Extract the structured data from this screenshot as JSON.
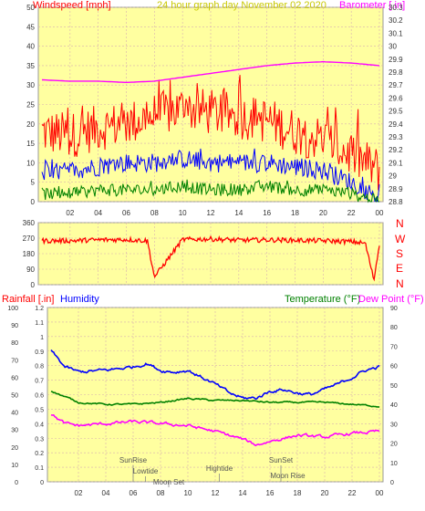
{
  "header": {
    "wind_label": "Windspeed [mph]",
    "date_label": "24 hour graph day   November 02 2020",
    "baro_label": "Barometer [.in]"
  },
  "panel3": {
    "rain_label": "Rainfall [.in]",
    "humidity_label": "Humidity",
    "temp_label": "Temperature (°F)",
    "dew_label": "Dew Point (°F)"
  },
  "compass": [
    "N",
    "W",
    "S",
    "E",
    "N"
  ],
  "colors": {
    "background": "#ffffa0",
    "frame": "#ffffff",
    "grid": "#d8b0b0",
    "windspeed": "#ff0000",
    "average_wind": "#0000ff",
    "minimum_wind": "#008000",
    "barometer": "#ff00ff",
    "direction": "#ff0000",
    "humidity": "#0000ff",
    "temperature": "#008000",
    "dew_point": "#ff00ff",
    "date_text": "#c8c800",
    "axis_text": "#333333"
  },
  "events": [
    {
      "label": "SunRise",
      "hour": 6.0
    },
    {
      "label": "Lowtide",
      "hour": 6.9
    },
    {
      "label": "Moon Set",
      "hour": 8.6
    },
    {
      "label": "Hightide",
      "hour": 12.3
    },
    {
      "label": "SunSet",
      "hour": 16.8
    },
    {
      "label": "Moon Rise",
      "hour": 17.3
    }
  ],
  "chart_data": [
    {
      "type": "line",
      "x_ticks": [
        "02",
        "04",
        "06",
        "08",
        "10",
        "12",
        "14",
        "16",
        "18",
        "20",
        "22",
        "00"
      ],
      "y_left_ticks": [
        "0",
        "5",
        "10",
        "15",
        "20",
        "25",
        "30",
        "35",
        "40",
        "45",
        "50"
      ],
      "y_left_range": [
        0,
        50
      ],
      "y_right_ticks": [
        "28.8",
        "28.9",
        "29",
        "29.1",
        "29.2",
        "29.3",
        "29.4",
        "29.5",
        "29.6",
        "29.7",
        "29.8",
        "29.9",
        "30",
        "30.1",
        "30.2",
        "30.3"
      ],
      "y_right_range": [
        28.8,
        30.3
      ],
      "x_range_hours": [
        0,
        24
      ],
      "series": [
        {
          "name": "Windspeed [mph]",
          "hours": [
            0,
            2,
            4,
            6,
            8,
            10,
            12,
            14,
            16,
            18,
            20,
            22,
            24
          ],
          "values": [
            18,
            17,
            19,
            20,
            22,
            24,
            23,
            22,
            21,
            18,
            16,
            12,
            8
          ]
        },
        {
          "name": "average wind",
          "hours": [
            0,
            2,
            4,
            6,
            8,
            10,
            12,
            14,
            16,
            18,
            20,
            22,
            24
          ],
          "values": [
            7,
            8,
            9,
            10,
            10,
            11,
            10,
            10,
            10,
            9,
            8,
            5,
            1
          ]
        },
        {
          "name": "minimum wind",
          "hours": [
            0,
            2,
            4,
            6,
            8,
            10,
            12,
            14,
            16,
            18,
            20,
            22,
            24
          ],
          "values": [
            2,
            2,
            3,
            3,
            3,
            4,
            3,
            3,
            4,
            3,
            3,
            2,
            0
          ]
        },
        {
          "name": "Barometer [.in]",
          "hours": [
            0,
            2,
            4,
            6,
            8,
            10,
            12,
            14,
            16,
            18,
            20,
            22,
            24
          ],
          "values": [
            29.74,
            29.73,
            29.73,
            29.72,
            29.73,
            29.76,
            29.79,
            29.82,
            29.85,
            29.87,
            29.88,
            29.87,
            29.85
          ]
        }
      ]
    },
    {
      "type": "line",
      "x_ticks": [
        "02",
        "04",
        "06",
        "08",
        "10",
        "12",
        "14",
        "16",
        "18",
        "20",
        "22",
        "00"
      ],
      "y_left_ticks": [
        "0",
        "90",
        "180",
        "270",
        "360"
      ],
      "y_left_range": [
        0,
        360
      ],
      "x_range_hours": [
        0,
        24
      ],
      "series": [
        {
          "name": "wind direction",
          "hours": [
            0,
            2,
            4,
            6,
            7.5,
            8,
            10,
            12,
            14,
            16,
            18,
            20,
            22,
            23,
            23.6,
            24
          ],
          "values": [
            255,
            255,
            260,
            262,
            255,
            45,
            262,
            265,
            258,
            260,
            258,
            255,
            250,
            240,
            30,
            230
          ]
        }
      ]
    },
    {
      "type": "line",
      "x_ticks": [
        "02",
        "04",
        "06",
        "08",
        "10",
        "12",
        "14",
        "16",
        "18",
        "20",
        "22",
        "00"
      ],
      "y_left_ticks": [
        "0",
        "0.1",
        "0.2",
        "0.3",
        "0.4",
        "0.5",
        "0.6",
        "0.7",
        "0.8",
        "0.9",
        "1",
        "1.1",
        "1.2"
      ],
      "y_left_range": [
        0,
        1.2
      ],
      "y_humidity_ticks": [
        "0",
        "10",
        "20",
        "30",
        "40",
        "50",
        "60",
        "70",
        "80",
        "90",
        "100"
      ],
      "y_humidity_range": [
        0,
        100
      ],
      "y_right_ticks": [
        "0",
        "10",
        "20",
        "30",
        "40",
        "50",
        "60",
        "70",
        "80",
        "90"
      ],
      "y_right_range": [
        0,
        90
      ],
      "x_range_hours": [
        0,
        24
      ],
      "series": [
        {
          "name": "Humidity",
          "hours": [
            0,
            1,
            2,
            4,
            6,
            7,
            8,
            9,
            10,
            12,
            13,
            14,
            15,
            16,
            17,
            18,
            19,
            20,
            21,
            22,
            23,
            24
          ],
          "values": [
            75,
            66,
            63,
            64,
            66,
            68,
            64,
            63,
            64,
            56,
            51,
            48,
            48,
            52,
            53,
            51,
            50,
            53,
            56,
            60,
            64,
            66
          ]
        },
        {
          "name": "Temperature (°F)",
          "hours": [
            0,
            2,
            4,
            6,
            8,
            10,
            12,
            14,
            16,
            18,
            20,
            22,
            24
          ],
          "values": [
            47,
            41,
            40,
            40,
            41,
            43,
            42,
            42,
            41,
            41,
            41,
            40,
            39
          ]
        },
        {
          "name": "Dew Point (°F)",
          "hours": [
            0,
            1,
            2,
            4,
            6,
            8,
            10,
            12,
            13,
            14,
            15,
            16,
            18,
            20,
            22,
            24
          ],
          "values": [
            35,
            30,
            29,
            30,
            31,
            30,
            29,
            26,
            24,
            22,
            19,
            21,
            24,
            23,
            25,
            26
          ]
        }
      ]
    }
  ]
}
